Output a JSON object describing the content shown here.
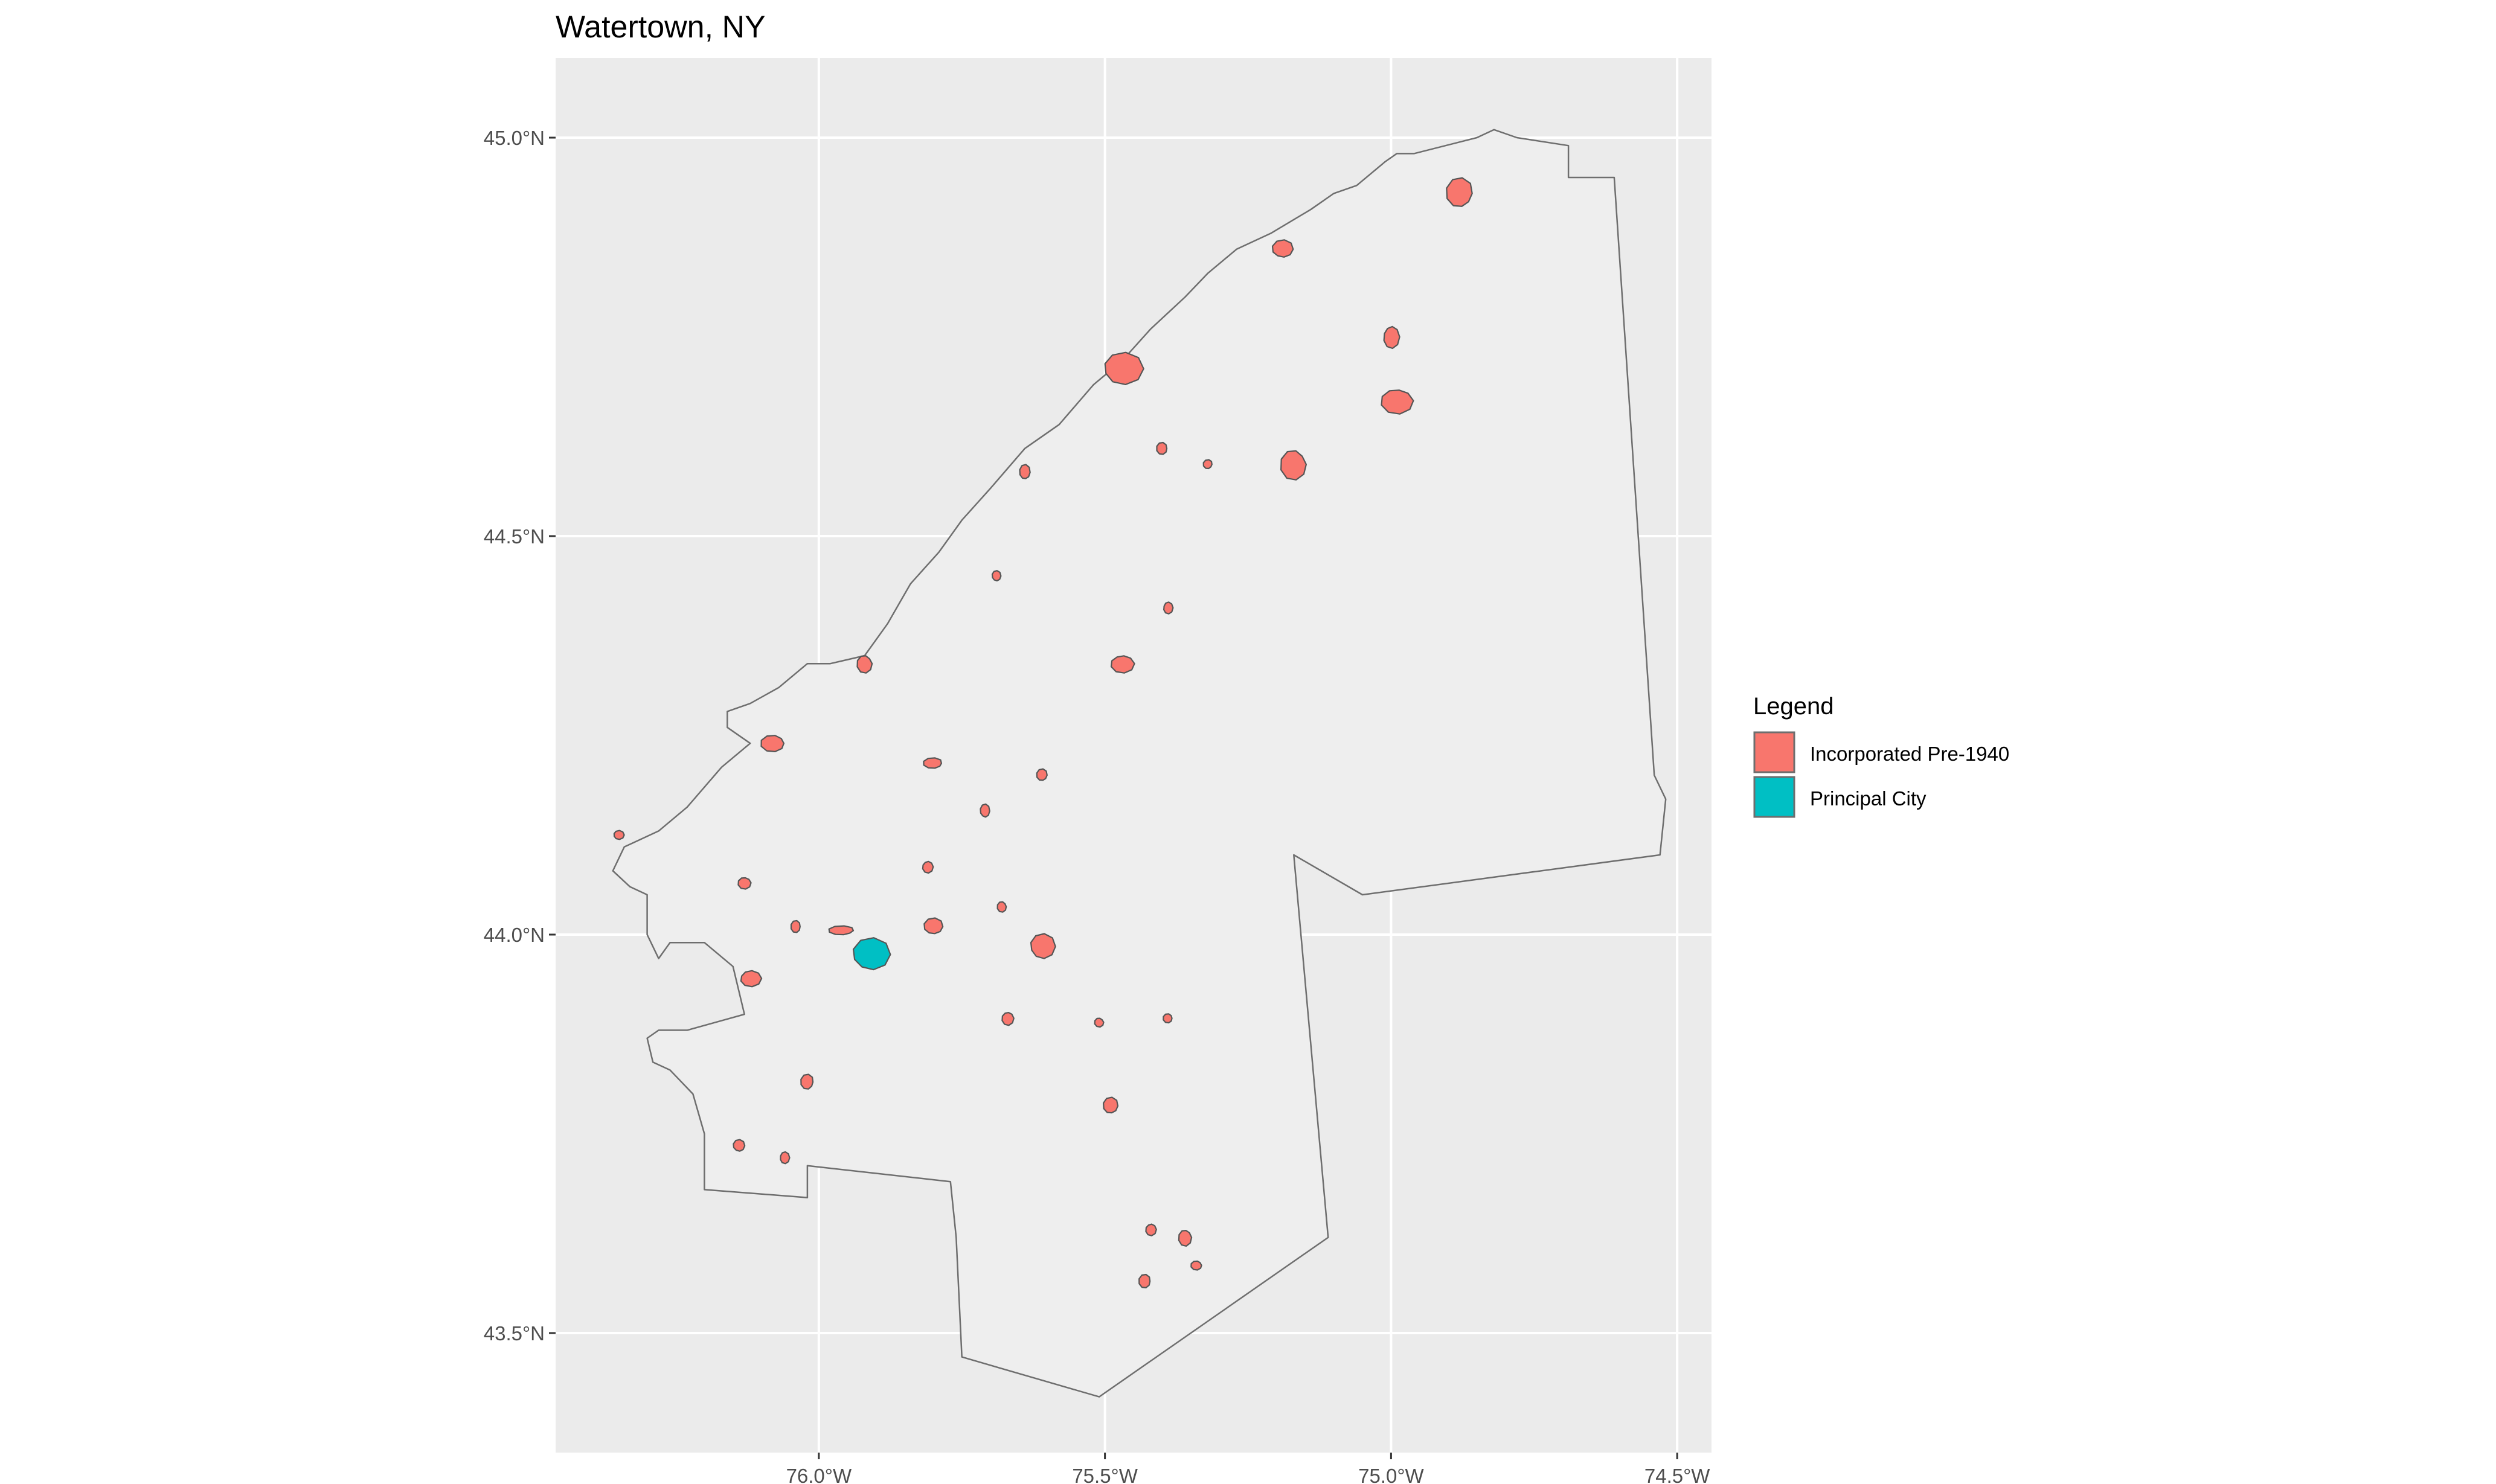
{
  "title": "Watertown, NY",
  "axes": {
    "x_ticks": [
      "76.0°W",
      "75.5°W",
      "75.0°W",
      "74.5°W"
    ],
    "y_ticks": [
      "45.0°N",
      "44.5°N",
      "44.0°N",
      "43.5°N"
    ],
    "x_range": [
      -76.46,
      -74.44
    ],
    "y_range": [
      43.35,
      45.1
    ],
    "grid": true
  },
  "legend": {
    "title": "Legend",
    "placement": "right",
    "items": [
      {
        "label": "Incorporated Pre-1940",
        "color": "#F8766D"
      },
      {
        "label": "Principal City",
        "color": "#00BFC4"
      }
    ]
  },
  "colors": {
    "panel_background": "#EBEBEB",
    "region_fill": "#EEEEEE",
    "gridline": "#FFFFFF",
    "outline": "#6E6E6E"
  },
  "chart_data": {
    "type": "map",
    "region_outline_lonlat": [
      [
        -76.2,
        43.68
      ],
      [
        -76.02,
        43.67
      ],
      [
        -76.02,
        43.71
      ],
      [
        -75.77,
        43.69
      ],
      [
        -75.76,
        43.62
      ],
      [
        -75.75,
        43.47
      ],
      [
        -75.51,
        43.42
      ],
      [
        -75.11,
        43.62
      ],
      [
        -75.17,
        44.1
      ],
      [
        -75.05,
        44.05
      ],
      [
        -74.53,
        44.1
      ],
      [
        -74.52,
        44.17
      ],
      [
        -74.54,
        44.2
      ],
      [
        -74.61,
        44.95
      ],
      [
        -74.69,
        44.95
      ],
      [
        -74.69,
        44.99
      ],
      [
        -74.78,
        45.0
      ],
      [
        -74.82,
        45.01
      ],
      [
        -74.85,
        45.0
      ],
      [
        -74.96,
        44.98
      ],
      [
        -74.99,
        44.98
      ],
      [
        -75.01,
        44.97
      ],
      [
        -75.06,
        44.94
      ],
      [
        -75.1,
        44.93
      ],
      [
        -75.14,
        44.91
      ],
      [
        -75.21,
        44.88
      ],
      [
        -75.27,
        44.86
      ],
      [
        -75.32,
        44.83
      ],
      [
        -75.36,
        44.8
      ],
      [
        -75.42,
        44.76
      ],
      [
        -75.47,
        44.72
      ],
      [
        -75.52,
        44.69
      ],
      [
        -75.58,
        44.64
      ],
      [
        -75.64,
        44.61
      ],
      [
        -75.7,
        44.56
      ],
      [
        -75.75,
        44.52
      ],
      [
        -75.79,
        44.48
      ],
      [
        -75.84,
        44.44
      ],
      [
        -75.88,
        44.39
      ],
      [
        -75.92,
        44.35
      ],
      [
        -75.98,
        44.34
      ],
      [
        -76.02,
        44.34
      ],
      [
        -76.07,
        44.31
      ],
      [
        -76.12,
        44.29
      ],
      [
        -76.16,
        44.28
      ],
      [
        -76.16,
        44.26
      ],
      [
        -76.12,
        44.24
      ],
      [
        -76.17,
        44.21
      ],
      [
        -76.23,
        44.16
      ],
      [
        -76.28,
        44.13
      ],
      [
        -76.34,
        44.11
      ],
      [
        -76.36,
        44.08
      ],
      [
        -76.33,
        44.06
      ],
      [
        -76.3,
        44.05
      ],
      [
        -76.3,
        44.0
      ],
      [
        -76.28,
        43.97
      ],
      [
        -76.26,
        43.99
      ],
      [
        -76.2,
        43.99
      ],
      [
        -76.15,
        43.96
      ],
      [
        -76.13,
        43.9
      ],
      [
        -76.18,
        43.89
      ],
      [
        -76.23,
        43.88
      ],
      [
        -76.28,
        43.88
      ],
      [
        -76.3,
        43.87
      ],
      [
        -76.29,
        43.84
      ],
      [
        -76.26,
        43.83
      ],
      [
        -76.22,
        43.8
      ],
      [
        -76.2,
        43.75
      ],
      [
        -76.2,
        43.68
      ]
    ],
    "incorporated_places": [
      {
        "name": "",
        "category": "Incorporated Pre-1940",
        "lon": -74.88,
        "lat": 44.93,
        "rx": 0.025,
        "ry": 0.02
      },
      {
        "name": "",
        "category": "Incorporated Pre-1940",
        "lon": -75.19,
        "lat": 44.86,
        "rx": 0.02,
        "ry": 0.012
      },
      {
        "name": "",
        "category": "Incorporated Pre-1940",
        "lon": -75.47,
        "lat": 44.71,
        "rx": 0.038,
        "ry": 0.022
      },
      {
        "name": "",
        "category": "Incorporated Pre-1940",
        "lon": -75.0,
        "lat": 44.75,
        "rx": 0.015,
        "ry": 0.015
      },
      {
        "name": "",
        "category": "Incorporated Pre-1940",
        "lon": -74.99,
        "lat": 44.67,
        "rx": 0.03,
        "ry": 0.017
      },
      {
        "name": "",
        "category": "Incorporated Pre-1940",
        "lon": -75.17,
        "lat": 44.59,
        "rx": 0.024,
        "ry": 0.02
      },
      {
        "name": "",
        "category": "Incorporated Pre-1940",
        "lon": -75.4,
        "lat": 44.61,
        "rx": 0.01,
        "ry": 0.008
      },
      {
        "name": "",
        "category": "Incorporated Pre-1940",
        "lon": -75.32,
        "lat": 44.59,
        "rx": 0.007,
        "ry": 0.005
      },
      {
        "name": "",
        "category": "Incorporated Pre-1940",
        "lon": -75.64,
        "lat": 44.58,
        "rx": 0.01,
        "ry": 0.01
      },
      {
        "name": "",
        "category": "Incorporated Pre-1940",
        "lon": -75.69,
        "lat": 44.45,
        "rx": 0.007,
        "ry": 0.007
      },
      {
        "name": "",
        "category": "Incorporated Pre-1940",
        "lon": -75.39,
        "lat": 44.41,
        "rx": 0.009,
        "ry": 0.008
      },
      {
        "name": "",
        "category": "Incorporated Pre-1940",
        "lon": -75.47,
        "lat": 44.34,
        "rx": 0.022,
        "ry": 0.012
      },
      {
        "name": "",
        "category": "Incorporated Pre-1940",
        "lon": -75.92,
        "lat": 44.34,
        "rx": 0.014,
        "ry": 0.012
      },
      {
        "name": "",
        "category": "Incorporated Pre-1940",
        "lon": -76.08,
        "lat": 44.24,
        "rx": 0.022,
        "ry": 0.011
      },
      {
        "name": "",
        "category": "Incorporated Pre-1940",
        "lon": -75.8,
        "lat": 44.215,
        "rx": 0.018,
        "ry": 0.007
      },
      {
        "name": "",
        "category": "Incorporated Pre-1940",
        "lon": -75.61,
        "lat": 44.2,
        "rx": 0.01,
        "ry": 0.008
      },
      {
        "name": "",
        "category": "Incorporated Pre-1940",
        "lon": -75.71,
        "lat": 44.155,
        "rx": 0.009,
        "ry": 0.009
      },
      {
        "name": "",
        "category": "Incorporated Pre-1940",
        "lon": -76.35,
        "lat": 44.125,
        "rx": 0.01,
        "ry": 0.006
      },
      {
        "name": "",
        "category": "Incorporated Pre-1940",
        "lon": -75.81,
        "lat": 44.085,
        "rx": 0.01,
        "ry": 0.008
      },
      {
        "name": "",
        "category": "Incorporated Pre-1940",
        "lon": -76.13,
        "lat": 44.065,
        "rx": 0.012,
        "ry": 0.008
      },
      {
        "name": "",
        "category": "Incorporated Pre-1940",
        "lon": -75.68,
        "lat": 44.035,
        "rx": 0.008,
        "ry": 0.007
      },
      {
        "name": "",
        "category": "Incorporated Pre-1940",
        "lon": -76.04,
        "lat": 44.01,
        "rx": 0.009,
        "ry": 0.008
      },
      {
        "name": "",
        "category": "Incorporated Pre-1940",
        "lon": -75.96,
        "lat": 44.005,
        "rx": 0.024,
        "ry": 0.005
      },
      {
        "name": "",
        "category": "Incorporated Pre-1940",
        "lon": -75.8,
        "lat": 44.01,
        "rx": 0.018,
        "ry": 0.011
      },
      {
        "name": "",
        "category": "Incorporated Pre-1940",
        "lon": -75.61,
        "lat": 43.985,
        "rx": 0.024,
        "ry": 0.017
      },
      {
        "name": "",
        "category": "Incorporated Pre-1940",
        "lon": -76.12,
        "lat": 43.945,
        "rx": 0.02,
        "ry": 0.011
      },
      {
        "name": "",
        "category": "Incorporated Pre-1940",
        "lon": -75.67,
        "lat": 43.895,
        "rx": 0.011,
        "ry": 0.009
      },
      {
        "name": "",
        "category": "Incorporated Pre-1940",
        "lon": -75.51,
        "lat": 43.89,
        "rx": 0.007,
        "ry": 0.005
      },
      {
        "name": "",
        "category": "Incorporated Pre-1940",
        "lon": -75.39,
        "lat": 43.895,
        "rx": 0.006,
        "ry": 0.005
      },
      {
        "name": "",
        "category": "Incorporated Pre-1940",
        "lon": -76.02,
        "lat": 43.815,
        "rx": 0.012,
        "ry": 0.01
      },
      {
        "name": "",
        "category": "Incorporated Pre-1940",
        "lon": -75.49,
        "lat": 43.785,
        "rx": 0.014,
        "ry": 0.011
      },
      {
        "name": "",
        "category": "Incorporated Pre-1940",
        "lon": -76.14,
        "lat": 43.735,
        "rx": 0.011,
        "ry": 0.008
      },
      {
        "name": "",
        "category": "Incorporated Pre-1940",
        "lon": -76.06,
        "lat": 43.72,
        "rx": 0.009,
        "ry": 0.008
      },
      {
        "name": "",
        "category": "Incorporated Pre-1940",
        "lon": -75.42,
        "lat": 43.63,
        "rx": 0.01,
        "ry": 0.008
      },
      {
        "name": "",
        "category": "Incorporated Pre-1940",
        "lon": -75.36,
        "lat": 43.62,
        "rx": 0.012,
        "ry": 0.011
      },
      {
        "name": "",
        "category": "Incorporated Pre-1940",
        "lon": -75.34,
        "lat": 43.585,
        "rx": 0.01,
        "ry": 0.006
      },
      {
        "name": "",
        "category": "Incorporated Pre-1940",
        "lon": -75.43,
        "lat": 43.565,
        "rx": 0.011,
        "ry": 0.009
      }
    ],
    "principal_city": {
      "name": "",
      "category": "Principal City",
      "lon": -75.91,
      "lat": 43.975,
      "rx": 0.036,
      "ry": 0.022
    }
  }
}
